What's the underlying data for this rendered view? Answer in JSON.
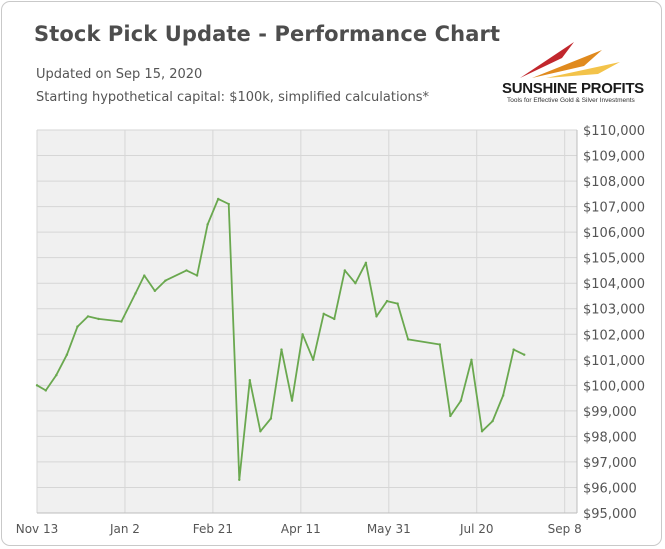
{
  "header": {
    "title": "Stock Pick Update - Performance Chart",
    "updated": "Updated on Sep 15, 2020",
    "note": "Starting hypothetical capital: $100k, simplified calculations*"
  },
  "logo": {
    "name": "SUNSHINE PROFITS",
    "tagline": "Tools for Effective Gold & Silver Investments",
    "colors": [
      "#c1272d",
      "#e08a1e",
      "#f3c34a"
    ]
  },
  "colors": {
    "line": "#6aa84f",
    "plot_background": "#f0f0f0",
    "grid": "#d6d6d6",
    "axis_text": "#555555",
    "title": "#4d4d4d"
  },
  "chart_data": {
    "type": "line",
    "title": "Stock Pick Update - Performance Chart",
    "xlabel": "",
    "ylabel": "",
    "y_axis_side": "right",
    "ylim": [
      95000,
      110000
    ],
    "xlim": [
      "2019-11-13",
      "2020-09-15"
    ],
    "grid": true,
    "x_ticks": [
      {
        "date": "2019-11-13",
        "label": "Nov 13"
      },
      {
        "date": "2020-01-02",
        "label": "Jan 2"
      },
      {
        "date": "2020-02-21",
        "label": "Feb 21"
      },
      {
        "date": "2020-04-11",
        "label": "Apr 11"
      },
      {
        "date": "2020-05-31",
        "label": "May 31"
      },
      {
        "date": "2020-07-20",
        "label": "Jul 20"
      },
      {
        "date": "2020-09-08",
        "label": "Sep 8"
      }
    ],
    "y_ticks": [
      {
        "value": 95000,
        "label": "$95,000"
      },
      {
        "value": 96000,
        "label": "$96,000"
      },
      {
        "value": 97000,
        "label": "$97,000"
      },
      {
        "value": 98000,
        "label": "$98,000"
      },
      {
        "value": 99000,
        "label": "$99,000"
      },
      {
        "value": 100000,
        "label": "$100,000"
      },
      {
        "value": 101000,
        "label": "$101,000"
      },
      {
        "value": 102000,
        "label": "$102,000"
      },
      {
        "value": 103000,
        "label": "$103,000"
      },
      {
        "value": 104000,
        "label": "$104,000"
      },
      {
        "value": 105000,
        "label": "$105,000"
      },
      {
        "value": 106000,
        "label": "$106,000"
      },
      {
        "value": 107000,
        "label": "$107,000"
      },
      {
        "value": 108000,
        "label": "$108,000"
      },
      {
        "value": 109000,
        "label": "$109,000"
      },
      {
        "value": 110000,
        "label": "$110,000"
      }
    ],
    "series": [
      {
        "points": [
          {
            "x": "2019-11-13",
            "y": 100000
          },
          {
            "x": "2019-11-18",
            "y": 99800
          },
          {
            "x": "2019-11-24",
            "y": 100400
          },
          {
            "x": "2019-11-30",
            "y": 101200
          },
          {
            "x": "2019-12-06",
            "y": 102300
          },
          {
            "x": "2019-12-12",
            "y": 102700
          },
          {
            "x": "2019-12-18",
            "y": 102600
          },
          {
            "x": "2019-12-31",
            "y": 102500
          },
          {
            "x": "2020-01-08",
            "y": 103600
          },
          {
            "x": "2020-01-13",
            "y": 104300
          },
          {
            "x": "2020-01-19",
            "y": 103700
          },
          {
            "x": "2020-01-25",
            "y": 104100
          },
          {
            "x": "2020-02-06",
            "y": 104500
          },
          {
            "x": "2020-02-12",
            "y": 104300
          },
          {
            "x": "2020-02-18",
            "y": 106300
          },
          {
            "x": "2020-02-24",
            "y": 107300
          },
          {
            "x": "2020-03-01",
            "y": 107100
          },
          {
            "x": "2020-03-07",
            "y": 96300
          },
          {
            "x": "2020-03-13",
            "y": 100200
          },
          {
            "x": "2020-03-19",
            "y": 98200
          },
          {
            "x": "2020-03-25",
            "y": 98700
          },
          {
            "x": "2020-03-31",
            "y": 101400
          },
          {
            "x": "2020-04-06",
            "y": 99400
          },
          {
            "x": "2020-04-12",
            "y": 102000
          },
          {
            "x": "2020-04-18",
            "y": 101000
          },
          {
            "x": "2020-04-24",
            "y": 102800
          },
          {
            "x": "2020-04-30",
            "y": 102600
          },
          {
            "x": "2020-05-06",
            "y": 104500
          },
          {
            "x": "2020-05-12",
            "y": 104000
          },
          {
            "x": "2020-05-18",
            "y": 104800
          },
          {
            "x": "2020-05-24",
            "y": 102700
          },
          {
            "x": "2020-05-30",
            "y": 103300
          },
          {
            "x": "2020-06-05",
            "y": 103200
          },
          {
            "x": "2020-06-11",
            "y": 101800
          },
          {
            "x": "2020-06-29",
            "y": 101600
          },
          {
            "x": "2020-07-05",
            "y": 98800
          },
          {
            "x": "2020-07-11",
            "y": 99400
          },
          {
            "x": "2020-07-17",
            "y": 101000
          },
          {
            "x": "2020-07-23",
            "y": 98200
          },
          {
            "x": "2020-07-29",
            "y": 98600
          },
          {
            "x": "2020-08-04",
            "y": 99600
          },
          {
            "x": "2020-08-10",
            "y": 101400
          },
          {
            "x": "2020-08-16",
            "y": 101200
          }
        ]
      }
    ]
  }
}
